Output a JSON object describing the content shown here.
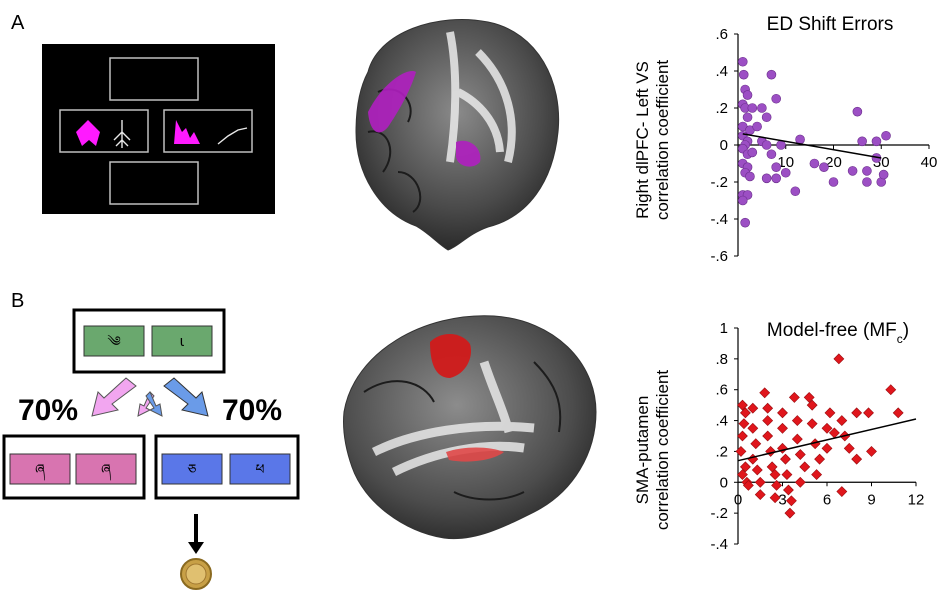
{
  "panels": {
    "a_label": "A",
    "b_label": "B"
  },
  "task_b": {
    "prob_left": "70%",
    "prob_right": "70%",
    "colors": {
      "top_boxes": "#6aa86e",
      "left_boxes": "#d874b0",
      "right_boxes": "#5a77e8",
      "arrow_pink": "#f2a6f0",
      "arrow_blue": "#6a9be8"
    }
  },
  "colors": {
    "purple_marker": "#9c4fc4",
    "red_marker": "#e0161c",
    "task_a_magenta": "#ff1aff"
  },
  "chart_data": [
    {
      "type": "scatter",
      "title": "ED Shift Errors",
      "xlabel": "",
      "ylabel_line1": "Right dlPFC- Left VS",
      "ylabel_line2": "correlation coefficient",
      "xlim": [
        0,
        40
      ],
      "ylim": [
        -0.6,
        0.6
      ],
      "x_ticks": [
        10,
        20,
        30,
        40
      ],
      "x_tick_labels": [
        "10",
        "20",
        "30",
        "40"
      ],
      "y_ticks": [
        0.6,
        0.4,
        0.2,
        0,
        -0.2,
        -0.4,
        -0.6
      ],
      "y_tick_labels": [
        ".6",
        ".4",
        ".2",
        "0",
        "-.2",
        "-.4",
        "-.6"
      ],
      "marker": "circle",
      "marker_color": "#9c4fc4",
      "points": [
        [
          1,
          0.45
        ],
        [
          1.2,
          0.38
        ],
        [
          1.5,
          0.3
        ],
        [
          2,
          0.27
        ],
        [
          1,
          0.22
        ],
        [
          1.5,
          0.2
        ],
        [
          2,
          0.15
        ],
        [
          1,
          0.1
        ],
        [
          2.5,
          0.08
        ],
        [
          1,
          0.05
        ],
        [
          2,
          0.02
        ],
        [
          1.5,
          0.0
        ],
        [
          1,
          -0.02
        ],
        [
          2,
          -0.05
        ],
        [
          3,
          -0.04
        ],
        [
          1,
          -0.1
        ],
        [
          2,
          -0.12
        ],
        [
          1.5,
          -0.15
        ],
        [
          2.5,
          -0.17
        ],
        [
          1,
          -0.27
        ],
        [
          2,
          -0.27
        ],
        [
          1,
          -0.3
        ],
        [
          1.5,
          -0.42
        ],
        [
          3,
          0.2
        ],
        [
          4,
          0.1
        ],
        [
          5,
          0.2
        ],
        [
          6,
          0.15
        ],
        [
          7,
          0.38
        ],
        [
          8,
          0.25
        ],
        [
          5,
          0.02
        ],
        [
          6,
          0.0
        ],
        [
          7,
          -0.05
        ],
        [
          8,
          -0.12
        ],
        [
          6,
          -0.18
        ],
        [
          8,
          -0.18
        ],
        [
          9,
          0.0
        ],
        [
          10,
          -0.15
        ],
        [
          12,
          -0.25
        ],
        [
          13,
          0.03
        ],
        [
          16,
          -0.1
        ],
        [
          18,
          -0.12
        ],
        [
          20,
          -0.2
        ],
        [
          24,
          -0.14
        ],
        [
          25,
          0.18
        ],
        [
          26,
          0.02
        ],
        [
          27,
          -0.14
        ],
        [
          27,
          -0.2
        ],
        [
          29,
          -0.07
        ],
        [
          30,
          -0.2
        ],
        [
          30.5,
          -0.16
        ],
        [
          29,
          0.02
        ],
        [
          31,
          0.05
        ]
      ],
      "trend": {
        "x": [
          1,
          30
        ],
        "y": [
          0.06,
          -0.07
        ]
      }
    },
    {
      "type": "scatter",
      "title": "Model-free (MF",
      "title_sub": "c",
      "title_end": ")",
      "xlabel": "",
      "ylabel_line1": "SMA-putamen",
      "ylabel_line2": "correlation coefficient",
      "xlim": [
        0,
        12
      ],
      "ylim": [
        -0.4,
        1.0
      ],
      "x_ticks": [
        0,
        3,
        6,
        9,
        12
      ],
      "x_tick_labels": [
        "0",
        "3",
        "6",
        "9",
        "12"
      ],
      "y_ticks": [
        1,
        0.8,
        0.6,
        0.4,
        0.2,
        0,
        -0.2,
        -0.4
      ],
      "y_tick_labels": [
        "1",
        ".8",
        ".6",
        ".4",
        ".2",
        "0",
        "-.2",
        "-.4"
      ],
      "marker": "diamond",
      "marker_color": "#e0161c",
      "points": [
        [
          0.3,
          0.5
        ],
        [
          0.5,
          0.45
        ],
        [
          0.4,
          0.38
        ],
        [
          0.3,
          0.3
        ],
        [
          0.2,
          0.2
        ],
        [
          0.5,
          0.1
        ],
        [
          0.3,
          0.05
        ],
        [
          0.6,
          0.0
        ],
        [
          0.7,
          -0.02
        ],
        [
          1,
          0.48
        ],
        [
          1,
          0.35
        ],
        [
          1.2,
          0.25
        ],
        [
          1,
          0.15
        ],
        [
          1.3,
          0.08
        ],
        [
          1.5,
          0.0
        ],
        [
          1.5,
          -0.08
        ],
        [
          1.8,
          0.58
        ],
        [
          2,
          0.48
        ],
        [
          2,
          0.4
        ],
        [
          2,
          0.3
        ],
        [
          2.2,
          0.2
        ],
        [
          2.3,
          0.1
        ],
        [
          2.5,
          0.05
        ],
        [
          2.6,
          -0.02
        ],
        [
          2.5,
          -0.1
        ],
        [
          3,
          0.45
        ],
        [
          3,
          0.35
        ],
        [
          3,
          0.22
        ],
        [
          3.2,
          0.15
        ],
        [
          3.3,
          0.05
        ],
        [
          3.4,
          -0.05
        ],
        [
          3.6,
          -0.12
        ],
        [
          3.5,
          -0.2
        ],
        [
          3.8,
          0.55
        ],
        [
          4,
          0.4
        ],
        [
          4,
          0.28
        ],
        [
          4.2,
          0.18
        ],
        [
          4.5,
          0.1
        ],
        [
          4.2,
          0.0
        ],
        [
          4.8,
          0.55
        ],
        [
          5,
          0.5
        ],
        [
          5,
          0.38
        ],
        [
          5.2,
          0.25
        ],
        [
          5.5,
          0.15
        ],
        [
          5.3,
          0.05
        ],
        [
          6,
          0.35
        ],
        [
          6,
          0.22
        ],
        [
          6.2,
          0.45
        ],
        [
          6.5,
          0.32
        ],
        [
          6.8,
          0.8
        ],
        [
          7,
          0.4
        ],
        [
          7.2,
          0.3
        ],
        [
          7.5,
          0.22
        ],
        [
          7,
          -0.06
        ],
        [
          8,
          0.45
        ],
        [
          8,
          0.15
        ],
        [
          8.8,
          0.45
        ],
        [
          9,
          0.2
        ],
        [
          10.3,
          0.6
        ],
        [
          10.8,
          0.45
        ]
      ],
      "trend": {
        "x": [
          0,
          12
        ],
        "y": [
          0.14,
          0.41
        ]
      }
    }
  ]
}
